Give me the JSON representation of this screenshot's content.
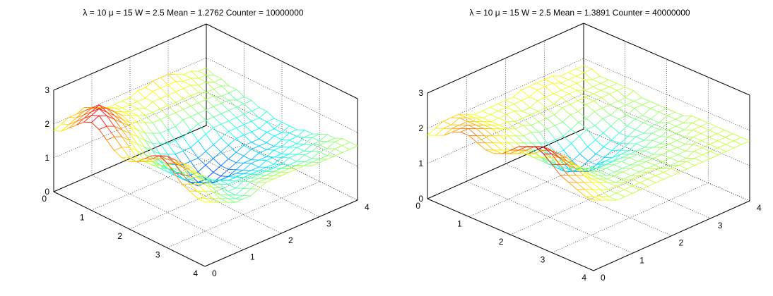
{
  "chart_data": [
    {
      "type": "surface",
      "title": "λ = 10 μ = 15 W = 2.5 Mean = 1.2762 Counter = 10000000",
      "xlim": [
        0,
        4
      ],
      "ylim": [
        0,
        4
      ],
      "zlim": [
        0,
        3
      ],
      "xticks": [
        "0",
        "1",
        "2",
        "3",
        "4"
      ],
      "yticks": [
        "0",
        "1",
        "2",
        "3",
        "4"
      ],
      "zticks": [
        "0",
        "1",
        "2",
        "3"
      ],
      "grid": true,
      "colormap": "jet",
      "grid_size": 21,
      "x": [
        0,
        0.2,
        0.4,
        0.6,
        0.8,
        1,
        1.2,
        1.4,
        1.6,
        1.8,
        2,
        2.2,
        2.4,
        2.6,
        2.8,
        3,
        3.2,
        3.4,
        3.6,
        3.8,
        4
      ],
      "y": [
        0,
        0.2,
        0.4,
        0.6,
        0.8,
        1,
        1.2,
        1.4,
        1.6,
        1.8,
        2,
        2.2,
        2.4,
        2.6,
        2.8,
        3,
        3.2,
        3.4,
        3.6,
        3.8,
        4
      ],
      "z": [
        [
          1.8,
          1.9,
          2.1,
          2.3,
          2.5,
          2.6,
          2.5,
          2.3,
          2.1,
          2.0,
          2.0,
          2.1,
          2.3,
          2.5,
          2.6,
          2.5,
          2.3,
          2.1,
          2.0,
          1.9,
          1.9
        ],
        [
          1.9,
          2.0,
          2.2,
          2.4,
          2.6,
          2.7,
          2.5,
          2.3,
          2.1,
          1.9,
          1.9,
          2.0,
          2.2,
          2.4,
          2.5,
          2.4,
          2.2,
          2.0,
          1.9,
          1.8,
          1.8
        ],
        [
          2.0,
          2.1,
          2.3,
          2.5,
          2.7,
          2.6,
          2.4,
          2.2,
          2.0,
          1.8,
          1.8,
          1.9,
          2.1,
          2.2,
          2.3,
          2.2,
          2.0,
          1.9,
          1.8,
          1.7,
          1.7
        ],
        [
          2.0,
          2.2,
          2.4,
          2.6,
          2.5,
          2.4,
          2.2,
          2.0,
          1.8,
          1.6,
          1.6,
          1.7,
          1.8,
          2.0,
          2.1,
          2.0,
          1.9,
          1.8,
          1.7,
          1.6,
          1.6
        ],
        [
          2.1,
          2.2,
          2.3,
          2.4,
          2.3,
          2.2,
          2.0,
          1.8,
          1.6,
          1.5,
          1.4,
          1.5,
          1.6,
          1.8,
          1.9,
          1.8,
          1.7,
          1.6,
          1.5,
          1.5,
          1.5
        ],
        [
          2.0,
          2.1,
          2.2,
          2.2,
          2.1,
          2.0,
          1.8,
          1.6,
          1.4,
          1.3,
          1.2,
          1.3,
          1.4,
          1.5,
          1.6,
          1.6,
          1.5,
          1.5,
          1.4,
          1.4,
          1.5
        ],
        [
          1.9,
          2.0,
          2.0,
          2.0,
          1.9,
          1.8,
          1.6,
          1.4,
          1.2,
          1.1,
          1.0,
          1.0,
          1.1,
          1.3,
          1.4,
          1.4,
          1.4,
          1.3,
          1.3,
          1.4,
          1.5
        ],
        [
          1.8,
          1.9,
          1.9,
          1.9,
          1.8,
          1.6,
          1.4,
          1.2,
          1.0,
          0.9,
          0.8,
          0.8,
          0.9,
          1.1,
          1.2,
          1.3,
          1.3,
          1.3,
          1.4,
          1.5,
          1.6
        ],
        [
          1.8,
          1.8,
          1.8,
          1.8,
          1.7,
          1.5,
          1.3,
          1.1,
          0.9,
          0.7,
          0.6,
          0.6,
          0.8,
          1.0,
          1.1,
          1.2,
          1.3,
          1.4,
          1.5,
          1.6,
          1.7
        ],
        [
          1.8,
          1.8,
          1.8,
          1.7,
          1.6,
          1.4,
          1.2,
          1.0,
          0.8,
          0.6,
          0.5,
          0.6,
          0.7,
          0.9,
          1.0,
          1.2,
          1.3,
          1.4,
          1.5,
          1.6,
          1.7
        ],
        [
          1.8,
          1.8,
          1.7,
          1.7,
          1.6,
          1.4,
          1.2,
          1.0,
          0.8,
          0.6,
          0.5,
          0.5,
          0.7,
          0.9,
          1.0,
          1.1,
          1.3,
          1.4,
          1.5,
          1.6,
          1.7
        ],
        [
          1.9,
          1.8,
          1.8,
          1.7,
          1.6,
          1.4,
          1.2,
          1.0,
          0.8,
          0.7,
          0.6,
          0.6,
          0.7,
          0.9,
          1.0,
          1.1,
          1.2,
          1.4,
          1.5,
          1.6,
          1.7
        ],
        [
          1.9,
          1.9,
          1.8,
          1.7,
          1.6,
          1.5,
          1.3,
          1.1,
          0.9,
          0.8,
          0.7,
          0.7,
          0.8,
          0.9,
          1.0,
          1.1,
          1.2,
          1.3,
          1.5,
          1.6,
          1.7
        ],
        [
          2.0,
          1.9,
          1.8,
          1.7,
          1.6,
          1.5,
          1.4,
          1.2,
          1.0,
          0.9,
          0.8,
          0.8,
          0.9,
          1.0,
          1.0,
          1.1,
          1.2,
          1.3,
          1.4,
          1.6,
          1.7
        ],
        [
          2.0,
          1.9,
          1.8,
          1.7,
          1.6,
          1.5,
          1.4,
          1.3,
          1.1,
          1.0,
          0.9,
          0.9,
          0.9,
          1.0,
          1.1,
          1.1,
          1.2,
          1.3,
          1.4,
          1.5,
          1.6
        ],
        [
          2.0,
          1.9,
          1.8,
          1.7,
          1.6,
          1.5,
          1.4,
          1.3,
          1.2,
          1.1,
          1.0,
          1.0,
          1.0,
          1.0,
          1.1,
          1.2,
          1.3,
          1.3,
          1.4,
          1.5,
          1.6
        ],
        [
          1.9,
          1.8,
          1.8,
          1.7,
          1.6,
          1.5,
          1.4,
          1.3,
          1.2,
          1.1,
          1.0,
          1.0,
          1.0,
          1.1,
          1.1,
          1.2,
          1.3,
          1.4,
          1.4,
          1.5,
          1.6
        ],
        [
          1.8,
          1.8,
          1.7,
          1.6,
          1.6,
          1.5,
          1.4,
          1.3,
          1.2,
          1.1,
          1.0,
          1.0,
          1.0,
          1.1,
          1.2,
          1.3,
          1.3,
          1.4,
          1.5,
          1.5,
          1.6
        ],
        [
          1.8,
          1.7,
          1.7,
          1.6,
          1.5,
          1.5,
          1.4,
          1.3,
          1.2,
          1.1,
          1.1,
          1.1,
          1.1,
          1.2,
          1.2,
          1.3,
          1.4,
          1.5,
          1.5,
          1.6,
          1.6
        ],
        [
          1.7,
          1.7,
          1.6,
          1.6,
          1.5,
          1.4,
          1.4,
          1.3,
          1.2,
          1.2,
          1.1,
          1.1,
          1.2,
          1.2,
          1.3,
          1.4,
          1.4,
          1.5,
          1.6,
          1.6,
          1.6
        ],
        [
          1.7,
          1.6,
          1.6,
          1.5,
          1.5,
          1.4,
          1.4,
          1.3,
          1.3,
          1.2,
          1.2,
          1.2,
          1.2,
          1.3,
          1.3,
          1.4,
          1.5,
          1.5,
          1.6,
          1.6,
          1.6
        ]
      ]
    },
    {
      "type": "surface",
      "title": "λ = 10 μ = 15 W = 2.5 Mean = 1.3891 Counter = 40000000",
      "xlim": [
        0,
        4
      ],
      "ylim": [
        0,
        4
      ],
      "zlim": [
        0,
        3
      ],
      "xticks": [
        "0",
        "1",
        "2",
        "3",
        "4"
      ],
      "yticks": [
        "0",
        "1",
        "2",
        "3",
        "4"
      ],
      "zticks": [
        "0",
        "1",
        "2",
        "3"
      ],
      "grid": true,
      "colormap": "jet",
      "grid_size": 21,
      "x": [
        0,
        0.2,
        0.4,
        0.6,
        0.8,
        1,
        1.2,
        1.4,
        1.6,
        1.8,
        2,
        2.2,
        2.4,
        2.6,
        2.8,
        3,
        3.2,
        3.4,
        3.6,
        3.8,
        4
      ],
      "y": [
        0,
        0.2,
        0.4,
        0.6,
        0.8,
        1,
        1.2,
        1.4,
        1.6,
        1.8,
        2,
        2.2,
        2.4,
        2.6,
        2.8,
        3,
        3.2,
        3.4,
        3.6,
        3.8,
        4
      ],
      "z": [
        [
          1.8,
          1.9,
          2.0,
          2.2,
          2.3,
          2.3,
          2.2,
          2.1,
          2.1,
          2.2,
          2.4,
          2.6,
          2.7,
          2.8,
          2.7,
          2.5,
          2.3,
          2.2,
          2.1,
          2.0,
          2.0
        ],
        [
          1.9,
          2.0,
          2.1,
          2.2,
          2.3,
          2.2,
          2.1,
          2.0,
          2.0,
          2.1,
          2.3,
          2.5,
          2.6,
          2.7,
          2.6,
          2.4,
          2.2,
          2.1,
          2.0,
          1.9,
          1.9
        ],
        [
          2.0,
          2.0,
          2.1,
          2.2,
          2.2,
          2.1,
          2.0,
          1.9,
          1.9,
          2.0,
          2.2,
          2.4,
          2.5,
          2.5,
          2.4,
          2.3,
          2.1,
          2.0,
          1.9,
          1.8,
          1.8
        ],
        [
          2.0,
          2.1,
          2.1,
          2.1,
          2.1,
          2.0,
          1.9,
          1.8,
          1.8,
          1.9,
          2.0,
          2.2,
          2.3,
          2.3,
          2.2,
          2.1,
          2.0,
          1.9,
          1.8,
          1.7,
          1.7
        ],
        [
          2.0,
          2.0,
          2.0,
          2.0,
          2.0,
          1.9,
          1.8,
          1.7,
          1.7,
          1.7,
          1.8,
          1.9,
          2.0,
          2.1,
          2.0,
          1.9,
          1.8,
          1.8,
          1.7,
          1.7,
          1.7
        ],
        [
          1.9,
          1.9,
          1.9,
          1.9,
          1.9,
          1.8,
          1.7,
          1.6,
          1.5,
          1.5,
          1.6,
          1.7,
          1.8,
          1.8,
          1.8,
          1.7,
          1.7,
          1.7,
          1.7,
          1.7,
          1.7
        ],
        [
          1.8,
          1.8,
          1.8,
          1.8,
          1.8,
          1.7,
          1.6,
          1.5,
          1.4,
          1.3,
          1.4,
          1.5,
          1.6,
          1.6,
          1.6,
          1.6,
          1.6,
          1.6,
          1.7,
          1.7,
          1.7
        ],
        [
          1.8,
          1.8,
          1.8,
          1.8,
          1.7,
          1.6,
          1.5,
          1.4,
          1.2,
          1.1,
          1.2,
          1.3,
          1.4,
          1.5,
          1.5,
          1.5,
          1.6,
          1.6,
          1.7,
          1.7,
          1.7
        ],
        [
          1.8,
          1.8,
          1.8,
          1.7,
          1.7,
          1.6,
          1.4,
          1.2,
          1.0,
          0.9,
          1.0,
          1.2,
          1.3,
          1.4,
          1.5,
          1.5,
          1.6,
          1.6,
          1.7,
          1.7,
          1.7
        ],
        [
          1.8,
          1.8,
          1.8,
          1.7,
          1.6,
          1.5,
          1.3,
          1.1,
          0.9,
          0.8,
          0.9,
          1.1,
          1.3,
          1.4,
          1.5,
          1.5,
          1.6,
          1.6,
          1.7,
          1.7,
          1.7
        ],
        [
          1.8,
          1.8,
          1.7,
          1.7,
          1.6,
          1.5,
          1.3,
          1.1,
          0.9,
          0.8,
          0.8,
          1.0,
          1.2,
          1.4,
          1.5,
          1.5,
          1.6,
          1.6,
          1.7,
          1.7,
          1.7
        ],
        [
          1.8,
          1.8,
          1.7,
          1.7,
          1.6,
          1.5,
          1.3,
          1.2,
          1.0,
          0.9,
          0.9,
          1.1,
          1.2,
          1.4,
          1.5,
          1.5,
          1.6,
          1.6,
          1.6,
          1.7,
          1.7
        ],
        [
          1.9,
          1.8,
          1.8,
          1.7,
          1.6,
          1.5,
          1.4,
          1.3,
          1.1,
          1.0,
          1.0,
          1.1,
          1.3,
          1.4,
          1.5,
          1.5,
          1.6,
          1.6,
          1.6,
          1.7,
          1.7
        ],
        [
          1.9,
          1.9,
          1.8,
          1.7,
          1.7,
          1.6,
          1.5,
          1.4,
          1.2,
          1.1,
          1.1,
          1.2,
          1.3,
          1.4,
          1.5,
          1.5,
          1.6,
          1.6,
          1.6,
          1.7,
          1.7
        ],
        [
          1.9,
          1.9,
          1.8,
          1.8,
          1.7,
          1.6,
          1.5,
          1.4,
          1.3,
          1.2,
          1.2,
          1.3,
          1.4,
          1.4,
          1.5,
          1.6,
          1.6,
          1.6,
          1.6,
          1.7,
          1.7
        ],
        [
          1.9,
          1.9,
          1.8,
          1.8,
          1.7,
          1.7,
          1.6,
          1.5,
          1.4,
          1.3,
          1.3,
          1.4,
          1.4,
          1.5,
          1.5,
          1.6,
          1.6,
          1.6,
          1.7,
          1.7,
          1.7
        ],
        [
          1.9,
          1.8,
          1.8,
          1.8,
          1.7,
          1.7,
          1.6,
          1.5,
          1.5,
          1.4,
          1.4,
          1.4,
          1.5,
          1.5,
          1.6,
          1.6,
          1.6,
          1.7,
          1.7,
          1.7,
          1.7
        ],
        [
          1.8,
          1.8,
          1.8,
          1.7,
          1.7,
          1.7,
          1.6,
          1.6,
          1.5,
          1.5,
          1.5,
          1.5,
          1.5,
          1.6,
          1.6,
          1.6,
          1.7,
          1.7,
          1.7,
          1.7,
          1.7
        ],
        [
          1.8,
          1.8,
          1.8,
          1.7,
          1.7,
          1.7,
          1.6,
          1.6,
          1.6,
          1.5,
          1.5,
          1.5,
          1.6,
          1.6,
          1.6,
          1.7,
          1.7,
          1.7,
          1.7,
          1.7,
          1.7
        ],
        [
          1.8,
          1.8,
          1.7,
          1.7,
          1.7,
          1.7,
          1.6,
          1.6,
          1.6,
          1.6,
          1.6,
          1.6,
          1.6,
          1.6,
          1.7,
          1.7,
          1.7,
          1.7,
          1.7,
          1.7,
          1.7
        ],
        [
          1.8,
          1.8,
          1.7,
          1.7,
          1.7,
          1.7,
          1.7,
          1.6,
          1.6,
          1.6,
          1.6,
          1.6,
          1.6,
          1.7,
          1.7,
          1.7,
          1.7,
          1.7,
          1.7,
          1.7,
          1.7
        ]
      ]
    }
  ]
}
